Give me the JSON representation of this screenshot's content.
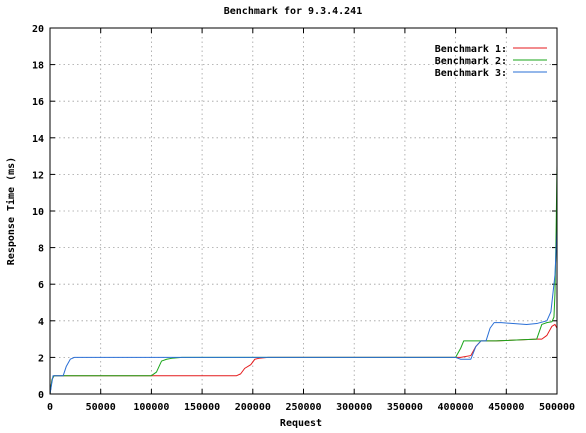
{
  "chart_data": {
    "type": "line",
    "title": "Benchmark for 9.3.4.241",
    "xlabel": "Request",
    "ylabel": "Response Time (ms)",
    "xlim": [
      0,
      500000
    ],
    "ylim": [
      0,
      20
    ],
    "xticks": [
      0,
      50000,
      100000,
      150000,
      200000,
      250000,
      300000,
      350000,
      400000,
      450000,
      500000
    ],
    "yticks": [
      0,
      2,
      4,
      6,
      8,
      10,
      12,
      14,
      16,
      18,
      20
    ],
    "grid": true,
    "legend_position": "top-right",
    "series": [
      {
        "name": "Benchmark 1:",
        "color": "#e41a1c",
        "points": [
          [
            0,
            0
          ],
          [
            2000,
            0.8
          ],
          [
            4000,
            1
          ],
          [
            100000,
            1
          ],
          [
            150000,
            1
          ],
          [
            184000,
            1
          ],
          [
            188000,
            1.1
          ],
          [
            192000,
            1.4
          ],
          [
            198000,
            1.6
          ],
          [
            202000,
            1.9
          ],
          [
            206000,
            1.95
          ],
          [
            215000,
            2
          ],
          [
            400000,
            2
          ],
          [
            405000,
            2
          ],
          [
            415000,
            2.1
          ],
          [
            420000,
            2.6
          ],
          [
            425000,
            2.9
          ],
          [
            440000,
            2.9
          ],
          [
            480000,
            3
          ],
          [
            485000,
            3
          ],
          [
            490000,
            3.2
          ],
          [
            495000,
            3.7
          ],
          [
            498000,
            3.8
          ],
          [
            500000,
            3.6
          ],
          [
            502000,
            3.1
          ]
        ]
      },
      {
        "name": "Benchmark 2:",
        "color": "#1aa61a",
        "points": [
          [
            0,
            0
          ],
          [
            2000,
            0.8
          ],
          [
            4000,
            1
          ],
          [
            100000,
            1
          ],
          [
            105000,
            1.2
          ],
          [
            110000,
            1.8
          ],
          [
            115000,
            1.9
          ],
          [
            120000,
            1.95
          ],
          [
            130000,
            2
          ],
          [
            400000,
            2
          ],
          [
            405000,
            2.5
          ],
          [
            408000,
            2.9
          ],
          [
            440000,
            2.9
          ],
          [
            480000,
            3
          ],
          [
            485000,
            3.8
          ],
          [
            490000,
            3.9
          ],
          [
            495000,
            3.95
          ],
          [
            497000,
            4.2
          ],
          [
            498000,
            5.5
          ],
          [
            499000,
            8.5
          ],
          [
            500000,
            12.5
          ],
          [
            501000,
            14.5
          ],
          [
            502000,
            15.3
          ]
        ]
      },
      {
        "name": "Benchmark 3:",
        "color": "#2a6fd6",
        "points": [
          [
            0,
            0
          ],
          [
            3000,
            1
          ],
          [
            13000,
            1
          ],
          [
            16000,
            1.5
          ],
          [
            20000,
            1.9
          ],
          [
            24000,
            2
          ],
          [
            400000,
            2
          ],
          [
            405000,
            1.9
          ],
          [
            415000,
            1.9
          ],
          [
            420000,
            2.6
          ],
          [
            425000,
            2.9
          ],
          [
            430000,
            2.9
          ],
          [
            434000,
            3.6
          ],
          [
            438000,
            3.9
          ],
          [
            445000,
            3.9
          ],
          [
            470000,
            3.8
          ],
          [
            480000,
            3.85
          ],
          [
            490000,
            4
          ],
          [
            494000,
            4.5
          ],
          [
            496000,
            5.5
          ],
          [
            498000,
            6.5
          ],
          [
            500000,
            9
          ],
          [
            501000,
            12.5
          ],
          [
            502000,
            16.6
          ]
        ]
      }
    ]
  }
}
